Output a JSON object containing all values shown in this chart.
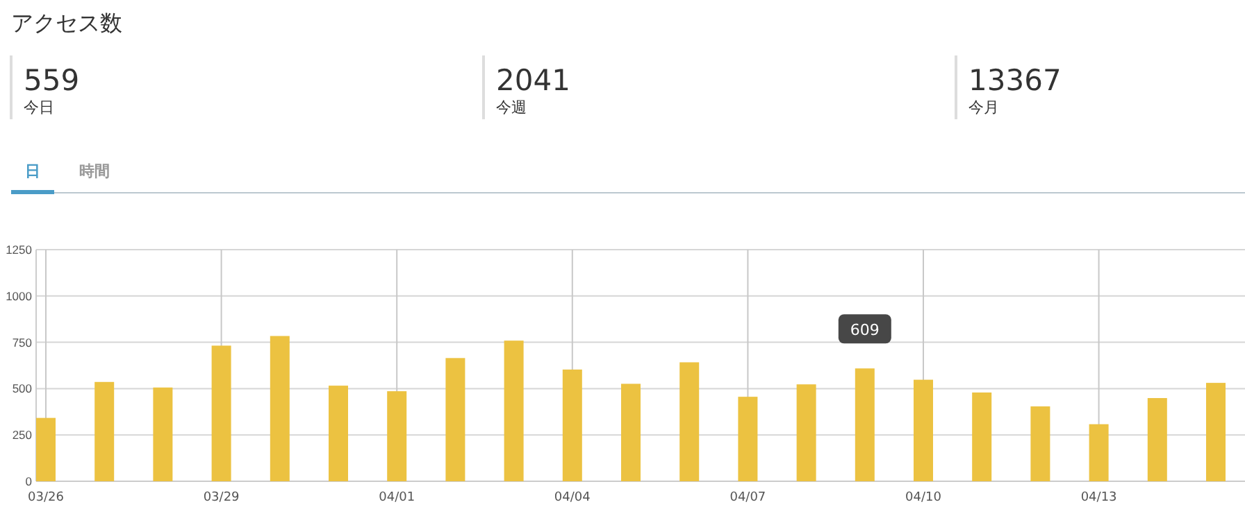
{
  "chart_data": [
    {
      "type": "other",
      "title": "アクセス数",
      "categories": [
        "今日",
        "今週",
        "今月"
      ],
      "values": [
        559,
        2041,
        13367
      ],
      "data_labels": true
    },
    {
      "type": "bar",
      "annotations": [
        "日",
        "時間",
        {
          "text": "609",
          "y": 609
        }
      ],
      "categories": [
        "03/26",
        null,
        null,
        "03/29",
        null,
        null,
        "04/01",
        null,
        null,
        "04/04",
        null,
        null,
        "04/07",
        null,
        null,
        "04/10",
        null,
        null,
        "04/13",
        null,
        null
      ],
      "values": [
        342,
        536,
        506,
        732,
        784,
        516,
        486,
        665,
        759,
        603,
        526,
        642,
        456,
        523,
        609,
        548,
        479,
        404,
        308,
        449,
        531
      ],
      "color": "#ecc241",
      "ylim": [
        0,
        1250
      ],
      "yticks": [
        0,
        250,
        500,
        750,
        1000,
        1250
      ],
      "grid": true
    }
  ]
}
